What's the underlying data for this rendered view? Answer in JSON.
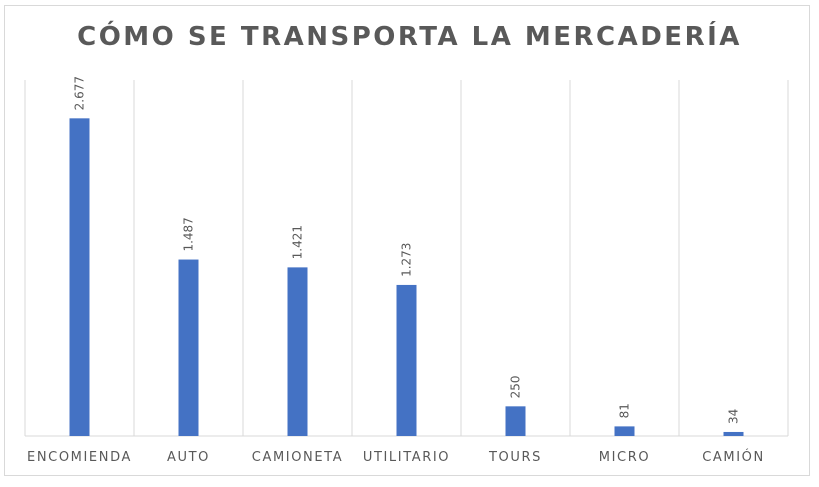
{
  "chart_data": {
    "type": "bar",
    "title": "CÓMO SE TRANSPORTA LA MERCADERÍA",
    "categories": [
      "ENCOMIENDA",
      "AUTO",
      "CAMIONETA",
      "UTILITARIO",
      "TOURS",
      "MICRO",
      "CAMIÓN"
    ],
    "values": [
      2677,
      1487,
      1421,
      1273,
      250,
      81,
      34
    ],
    "data_labels": [
      "2.677",
      "1.487",
      "1.421",
      "1.273",
      "250",
      "81",
      "34"
    ],
    "xlabel": "",
    "ylabel": "",
    "ylim": [
      0,
      3000
    ],
    "grid": "vertical category separators",
    "legend": "none",
    "bar_color": "#4472C4"
  }
}
